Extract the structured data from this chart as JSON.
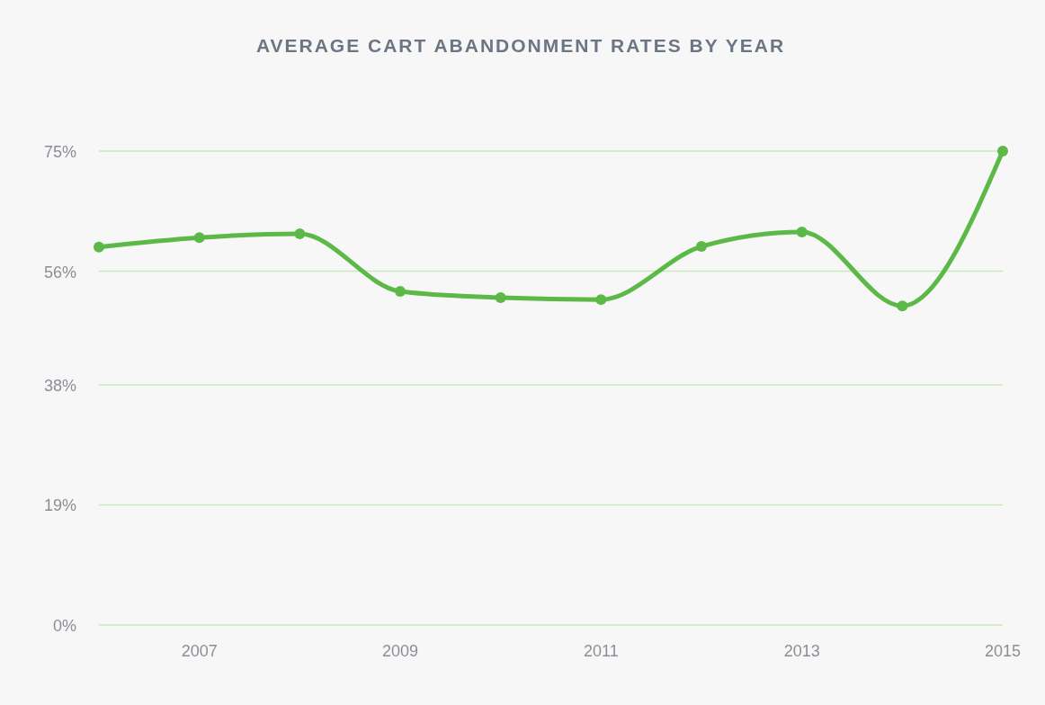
{
  "chart_data": {
    "type": "line",
    "title": "AVERAGE CART ABANDONMENT RATES BY YEAR",
    "x": [
      2006,
      2007,
      2008,
      2009,
      2010,
      2011,
      2012,
      2013,
      2014,
      2015
    ],
    "series": [
      {
        "color": "#5cb947",
        "values": [
          59.8,
          61.3,
          61.9,
          52.8,
          51.8,
          51.5,
          59.9,
          62.2,
          50.5,
          75
        ]
      }
    ],
    "xlim": [
      2006,
      2015
    ],
    "xticks": [
      2007,
      2009,
      2011,
      2013,
      2015
    ],
    "ylim": [
      0,
      75
    ],
    "yticks": [
      {
        "value": 0,
        "label": "0%"
      },
      {
        "value": 19,
        "label": "19%"
      },
      {
        "value": 38,
        "label": "38%"
      },
      {
        "value": 56,
        "label": "56%"
      },
      {
        "value": 75,
        "label": "75%"
      }
    ],
    "grid": "y",
    "marker": "circle",
    "line_style": "solid"
  }
}
